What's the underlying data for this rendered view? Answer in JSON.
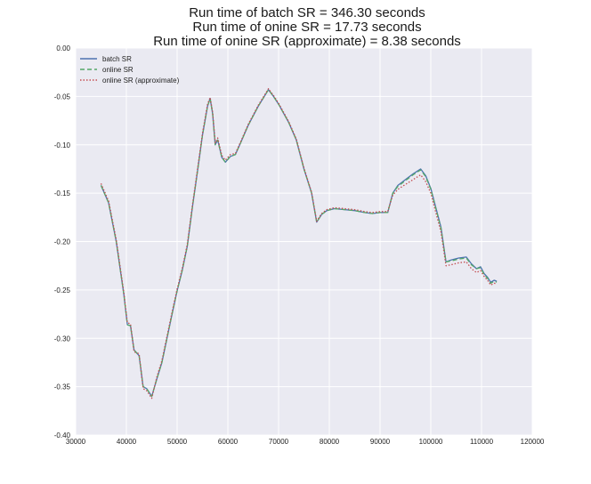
{
  "chart_data": {
    "type": "line",
    "title_lines": [
      "Run time of batch SR = 346.30 seconds",
      "Run time of onine SR = 17.73 seconds",
      "Run time of onine SR (approximate) = 8.38 seconds"
    ],
    "xlabel": "",
    "ylabel": "",
    "xlim": [
      30000,
      120000
    ],
    "ylim": [
      -0.4,
      0.0
    ],
    "x_ticks": [
      30000,
      40000,
      50000,
      60000,
      70000,
      80000,
      90000,
      100000,
      110000,
      120000
    ],
    "x_tick_labels": [
      "30000",
      "40000",
      "50000",
      "60000",
      "70000",
      "80000",
      "90000",
      "100000",
      "110000",
      "120000"
    ],
    "y_ticks": [
      0.0,
      -0.05,
      -0.1,
      -0.15,
      -0.2,
      -0.25,
      -0.3,
      -0.35,
      -0.4
    ],
    "y_tick_labels": [
      "0.00",
      "-0.05",
      "-0.10",
      "-0.15",
      "-0.20",
      "-0.25",
      "-0.30",
      "-0.35",
      "-0.40"
    ],
    "grid": true,
    "legend_position": "top-left",
    "colors": {
      "background": "#eaeaf2",
      "grid": "#ffffff"
    },
    "series": [
      {
        "name": "batch SR",
        "color": "#4c72b0",
        "style": "solid",
        "points": [
          [
            35000,
            -0.142
          ],
          [
            36500,
            -0.16
          ],
          [
            38000,
            -0.2
          ],
          [
            39500,
            -0.255
          ],
          [
            40200,
            -0.286
          ],
          [
            40800,
            -0.287
          ],
          [
            41500,
            -0.312
          ],
          [
            42500,
            -0.318
          ],
          [
            43300,
            -0.35
          ],
          [
            44000,
            -0.352
          ],
          [
            45000,
            -0.36
          ],
          [
            46000,
            -0.342
          ],
          [
            47000,
            -0.325
          ],
          [
            48000,
            -0.3
          ],
          [
            49000,
            -0.275
          ],
          [
            50000,
            -0.251
          ],
          [
            51000,
            -0.23
          ],
          [
            52000,
            -0.205
          ],
          [
            53000,
            -0.165
          ],
          [
            54000,
            -0.128
          ],
          [
            55000,
            -0.09
          ],
          [
            56000,
            -0.06
          ],
          [
            56500,
            -0.052
          ],
          [
            57000,
            -0.068
          ],
          [
            57500,
            -0.1
          ],
          [
            58000,
            -0.095
          ],
          [
            58800,
            -0.113
          ],
          [
            59500,
            -0.118
          ],
          [
            60500,
            -0.112
          ],
          [
            61500,
            -0.11
          ],
          [
            62500,
            -0.098
          ],
          [
            64000,
            -0.08
          ],
          [
            66000,
            -0.06
          ],
          [
            68000,
            -0.043
          ],
          [
            69000,
            -0.05
          ],
          [
            70000,
            -0.058
          ],
          [
            72000,
            -0.077
          ],
          [
            73500,
            -0.095
          ],
          [
            75000,
            -0.125
          ],
          [
            76500,
            -0.15
          ],
          [
            77500,
            -0.18
          ],
          [
            78500,
            -0.172
          ],
          [
            79500,
            -0.168
          ],
          [
            81000,
            -0.166
          ],
          [
            83000,
            -0.167
          ],
          [
            85000,
            -0.168
          ],
          [
            87000,
            -0.17
          ],
          [
            88500,
            -0.171
          ],
          [
            90000,
            -0.17
          ],
          [
            91500,
            -0.17
          ],
          [
            92500,
            -0.15
          ],
          [
            93500,
            -0.142
          ],
          [
            95000,
            -0.136
          ],
          [
            96500,
            -0.13
          ],
          [
            98000,
            -0.125
          ],
          [
            99000,
            -0.132
          ],
          [
            100000,
            -0.145
          ],
          [
            101000,
            -0.165
          ],
          [
            102000,
            -0.185
          ],
          [
            103000,
            -0.221
          ],
          [
            104000,
            -0.219
          ],
          [
            105500,
            -0.217
          ],
          [
            107000,
            -0.216
          ],
          [
            108000,
            -0.223
          ],
          [
            109000,
            -0.228
          ],
          [
            109800,
            -0.226
          ],
          [
            110500,
            -0.233
          ],
          [
            111200,
            -0.237
          ],
          [
            111800,
            -0.242
          ],
          [
            112500,
            -0.24
          ],
          [
            113000,
            -0.241
          ]
        ]
      },
      {
        "name": "online SR",
        "color": "#55a868",
        "style": "dashed",
        "points": [
          [
            35000,
            -0.142
          ],
          [
            36500,
            -0.16
          ],
          [
            38000,
            -0.2
          ],
          [
            39500,
            -0.255
          ],
          [
            40200,
            -0.286
          ],
          [
            40800,
            -0.287
          ],
          [
            41500,
            -0.312
          ],
          [
            42500,
            -0.318
          ],
          [
            43300,
            -0.35
          ],
          [
            44000,
            -0.352
          ],
          [
            45000,
            -0.36
          ],
          [
            46000,
            -0.342
          ],
          [
            47000,
            -0.325
          ],
          [
            48000,
            -0.3
          ],
          [
            49000,
            -0.275
          ],
          [
            50000,
            -0.251
          ],
          [
            51000,
            -0.23
          ],
          [
            52000,
            -0.205
          ],
          [
            53000,
            -0.165
          ],
          [
            54000,
            -0.128
          ],
          [
            55000,
            -0.09
          ],
          [
            56000,
            -0.06
          ],
          [
            56500,
            -0.052
          ],
          [
            57000,
            -0.068
          ],
          [
            57500,
            -0.1
          ],
          [
            58000,
            -0.095
          ],
          [
            58800,
            -0.113
          ],
          [
            59500,
            -0.118
          ],
          [
            60500,
            -0.112
          ],
          [
            61500,
            -0.11
          ],
          [
            62500,
            -0.098
          ],
          [
            64000,
            -0.08
          ],
          [
            66000,
            -0.06
          ],
          [
            68000,
            -0.043
          ],
          [
            69000,
            -0.05
          ],
          [
            70000,
            -0.058
          ],
          [
            72000,
            -0.077
          ],
          [
            73500,
            -0.095
          ],
          [
            75000,
            -0.125
          ],
          [
            76500,
            -0.15
          ],
          [
            77500,
            -0.18
          ],
          [
            78500,
            -0.172
          ],
          [
            79500,
            -0.168
          ],
          [
            81000,
            -0.166
          ],
          [
            83000,
            -0.167
          ],
          [
            85000,
            -0.168
          ],
          [
            87000,
            -0.17
          ],
          [
            88500,
            -0.171
          ],
          [
            90000,
            -0.17
          ],
          [
            91500,
            -0.17
          ],
          [
            92500,
            -0.15
          ],
          [
            93500,
            -0.143
          ],
          [
            95000,
            -0.137
          ],
          [
            96500,
            -0.131
          ],
          [
            98000,
            -0.126
          ],
          [
            99000,
            -0.133
          ],
          [
            100000,
            -0.146
          ],
          [
            101000,
            -0.166
          ],
          [
            102000,
            -0.186
          ],
          [
            103000,
            -0.221
          ],
          [
            104000,
            -0.22
          ],
          [
            105500,
            -0.218
          ],
          [
            107000,
            -0.217
          ],
          [
            108000,
            -0.224
          ],
          [
            109000,
            -0.228
          ],
          [
            109800,
            -0.227
          ],
          [
            110500,
            -0.234
          ],
          [
            111200,
            -0.238
          ],
          [
            111800,
            -0.243
          ],
          [
            112500,
            -0.241
          ],
          [
            113000,
            -0.242
          ]
        ]
      },
      {
        "name": "online SR (approximate)",
        "color": "#c44e52",
        "style": "dotted",
        "points": [
          [
            35000,
            -0.14
          ],
          [
            36500,
            -0.158
          ],
          [
            38000,
            -0.198
          ],
          [
            39500,
            -0.253
          ],
          [
            40200,
            -0.284
          ],
          [
            40800,
            -0.285
          ],
          [
            41500,
            -0.314
          ],
          [
            42500,
            -0.316
          ],
          [
            43300,
            -0.352
          ],
          [
            44000,
            -0.354
          ],
          [
            45000,
            -0.362
          ],
          [
            46000,
            -0.34
          ],
          [
            47000,
            -0.323
          ],
          [
            48000,
            -0.298
          ],
          [
            49000,
            -0.273
          ],
          [
            50000,
            -0.249
          ],
          [
            51000,
            -0.228
          ],
          [
            52000,
            -0.203
          ],
          [
            53000,
            -0.163
          ],
          [
            54000,
            -0.126
          ],
          [
            55000,
            -0.088
          ],
          [
            56000,
            -0.058
          ],
          [
            56500,
            -0.051
          ],
          [
            57000,
            -0.066
          ],
          [
            57500,
            -0.098
          ],
          [
            58000,
            -0.093
          ],
          [
            58800,
            -0.111
          ],
          [
            59500,
            -0.116
          ],
          [
            60500,
            -0.11
          ],
          [
            61500,
            -0.109
          ],
          [
            62500,
            -0.097
          ],
          [
            64000,
            -0.079
          ],
          [
            66000,
            -0.059
          ],
          [
            68000,
            -0.042
          ],
          [
            69000,
            -0.049
          ],
          [
            70000,
            -0.057
          ],
          [
            72000,
            -0.076
          ],
          [
            73500,
            -0.094
          ],
          [
            75000,
            -0.124
          ],
          [
            76500,
            -0.149
          ],
          [
            77500,
            -0.179
          ],
          [
            78500,
            -0.171
          ],
          [
            79500,
            -0.167
          ],
          [
            81000,
            -0.165
          ],
          [
            83000,
            -0.166
          ],
          [
            85000,
            -0.167
          ],
          [
            87000,
            -0.169
          ],
          [
            88500,
            -0.17
          ],
          [
            90000,
            -0.169
          ],
          [
            91500,
            -0.169
          ],
          [
            92500,
            -0.152
          ],
          [
            93500,
            -0.146
          ],
          [
            95000,
            -0.141
          ],
          [
            96500,
            -0.136
          ],
          [
            98000,
            -0.131
          ],
          [
            99000,
            -0.138
          ],
          [
            100000,
            -0.15
          ],
          [
            101000,
            -0.17
          ],
          [
            102000,
            -0.19
          ],
          [
            103000,
            -0.225
          ],
          [
            104000,
            -0.224
          ],
          [
            105500,
            -0.222
          ],
          [
            107000,
            -0.221
          ],
          [
            108000,
            -0.228
          ],
          [
            109000,
            -0.232
          ],
          [
            109800,
            -0.23
          ],
          [
            110500,
            -0.236
          ],
          [
            111200,
            -0.24
          ],
          [
            111800,
            -0.245
          ],
          [
            112500,
            -0.243
          ],
          [
            113000,
            -0.244
          ]
        ]
      }
    ]
  }
}
